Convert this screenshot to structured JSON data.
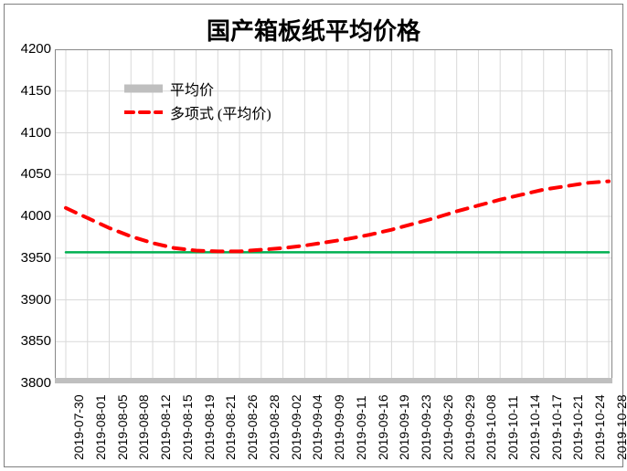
{
  "chart": {
    "type": "line",
    "title": "国产箱板纸平均价格",
    "title_fontsize": 26,
    "title_fontweight": "bold",
    "background_color": "#ffffff",
    "border_color": "#7f7f7f",
    "plot_border_color": "#888888",
    "gridline_color": "#d9d9d9",
    "bottom_band_color": "#bfbfbf",
    "ylim": [
      3800,
      4200
    ],
    "yticks": [
      3800,
      3850,
      3900,
      3950,
      4000,
      4050,
      4100,
      4150,
      4200
    ],
    "ytick_fontsize": 15,
    "xticks": [
      "2019-07-30",
      "2019-08-01",
      "2019-08-05",
      "2019-08-08",
      "2019-08-12",
      "2019-08-15",
      "2019-08-19",
      "2019-08-21",
      "2019-08-26",
      "2019-08-28",
      "2019-09-02",
      "2019-09-04",
      "2019-09-09",
      "2019-09-11",
      "2019-09-16",
      "2019-09-19",
      "2019-09-23",
      "2019-09-26",
      "2019-09-29",
      "2019-10-08",
      "2019-10-11",
      "2019-10-14",
      "2019-10-17",
      "2019-10-21",
      "2019-10-24",
      "2019-10-28"
    ],
    "xtick_fontsize": 14,
    "xtick_rotation": -90,
    "legend": {
      "entries": [
        {
          "label": "平均价",
          "type": "solid",
          "color": "#bfbfbf",
          "width": 9
        },
        {
          "label": "多项式 (平均价)",
          "type": "dash",
          "color": "#ff0000",
          "width": 4
        }
      ],
      "fontsize": 16
    },
    "series": [
      {
        "name": "avg_line",
        "label": "平均价 flat line",
        "type": "line-solid",
        "color": "#00b050",
        "width": 2.5,
        "data": [
          {
            "xi": 0,
            "y": 3957
          },
          {
            "xi": 25,
            "y": 3957
          }
        ]
      },
      {
        "name": "poly",
        "label": "多项式 (平均价)",
        "type": "line-dash",
        "color": "#ff0000",
        "width": 4,
        "dash": "12 9",
        "data": [
          {
            "xi": 0,
            "y": 4010
          },
          {
            "xi": 1,
            "y": 3998
          },
          {
            "xi": 2,
            "y": 3986
          },
          {
            "xi": 3,
            "y": 3976
          },
          {
            "xi": 4,
            "y": 3968
          },
          {
            "xi": 5,
            "y": 3962
          },
          {
            "xi": 6,
            "y": 3959
          },
          {
            "xi": 7,
            "y": 3958
          },
          {
            "xi": 8,
            "y": 3958
          },
          {
            "xi": 9,
            "y": 3960
          },
          {
            "xi": 10,
            "y": 3962
          },
          {
            "xi": 11,
            "y": 3965
          },
          {
            "xi": 12,
            "y": 3969
          },
          {
            "xi": 13,
            "y": 3973
          },
          {
            "xi": 14,
            "y": 3978
          },
          {
            "xi": 15,
            "y": 3984
          },
          {
            "xi": 16,
            "y": 3991
          },
          {
            "xi": 17,
            "y": 3998
          },
          {
            "xi": 18,
            "y": 4006
          },
          {
            "xi": 19,
            "y": 4013
          },
          {
            "xi": 20,
            "y": 4020
          },
          {
            "xi": 21,
            "y": 4026
          },
          {
            "xi": 22,
            "y": 4032
          },
          {
            "xi": 23,
            "y": 4036
          },
          {
            "xi": 24,
            "y": 4040
          },
          {
            "xi": 25,
            "y": 4042
          }
        ]
      }
    ]
  }
}
